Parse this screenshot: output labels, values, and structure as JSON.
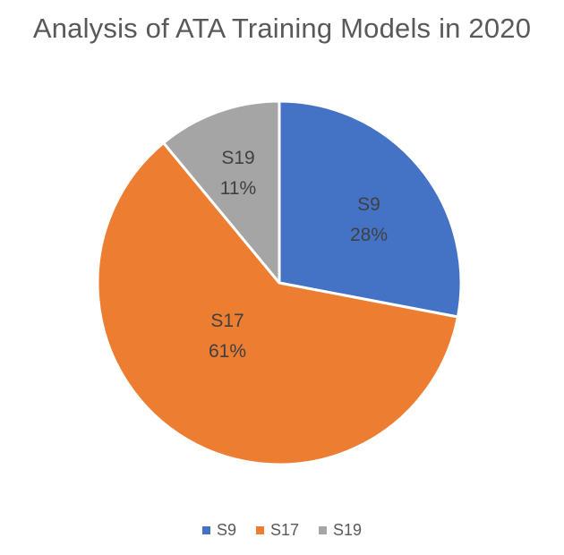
{
  "chart_data": {
    "type": "pie",
    "title": "Analysis of ATA Training Models in 2020",
    "slices": [
      {
        "name": "S9",
        "value": 28,
        "label": "28%",
        "color": "#4472C4"
      },
      {
        "name": "S17",
        "value": 61,
        "label": "61%",
        "color": "#ED7D31"
      },
      {
        "name": "S19",
        "value": 11,
        "label": "11%",
        "color": "#A5A5A5"
      }
    ],
    "legend": {
      "position": "bottom",
      "items": [
        {
          "name": "S9",
          "color": "#4472C4"
        },
        {
          "name": "S17",
          "color": "#ED7D31"
        },
        {
          "name": "S19",
          "color": "#A5A5A5"
        }
      ]
    }
  }
}
